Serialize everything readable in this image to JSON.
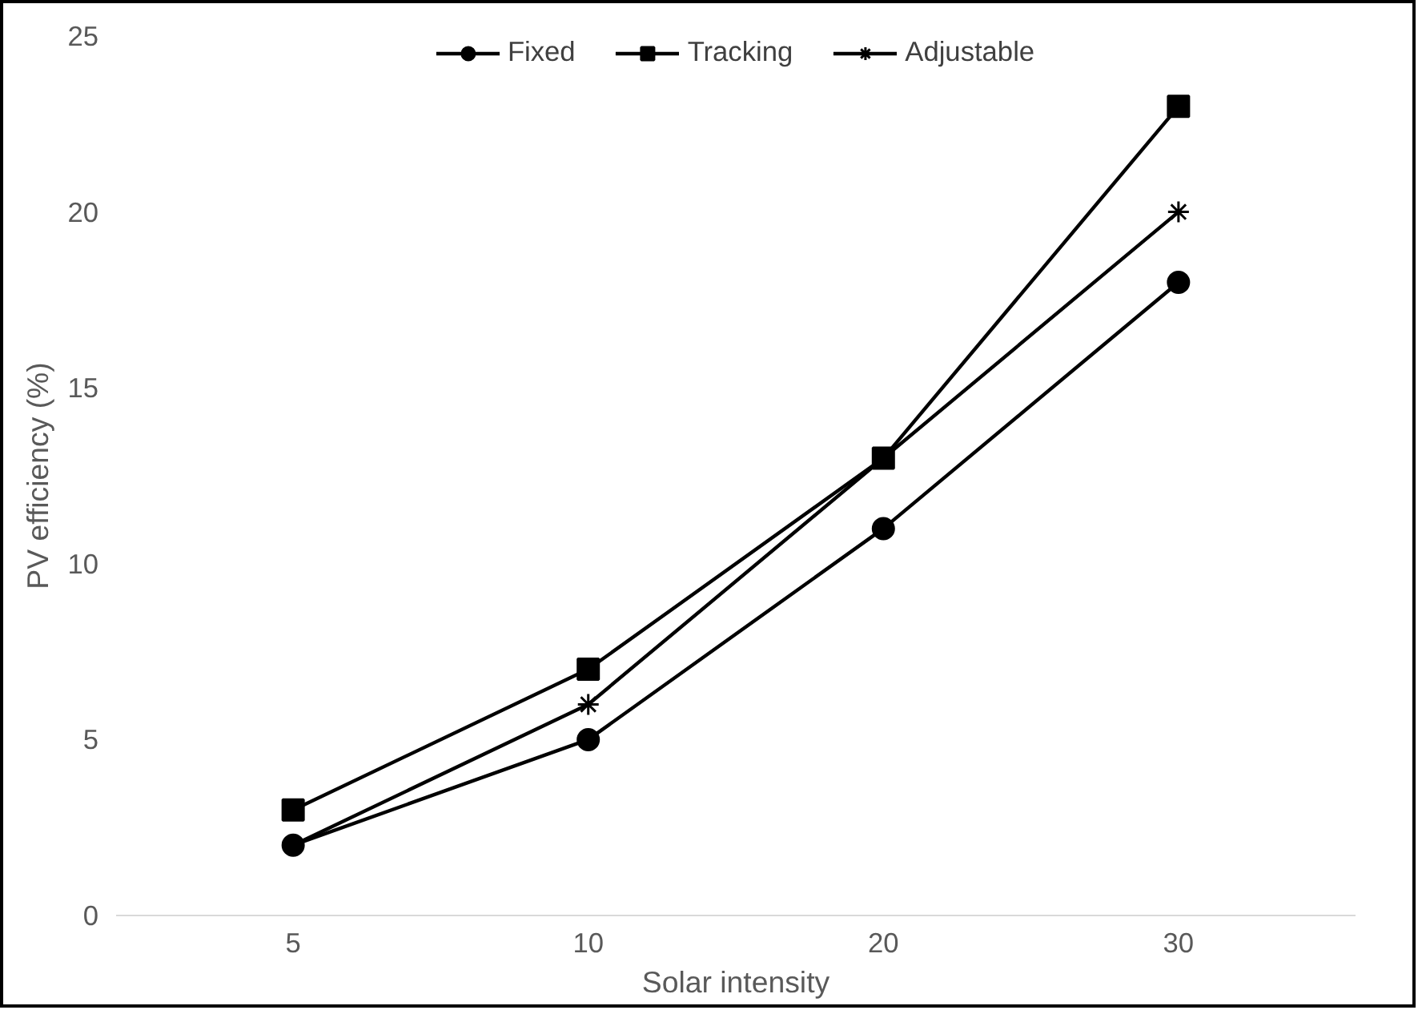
{
  "chart_data": {
    "type": "line",
    "xlabel": "Solar intensity",
    "ylabel": "PV efficiency (%)",
    "categories": [
      "5",
      "10",
      "20",
      "30"
    ],
    "ylim": [
      0,
      25
    ],
    "yticks": [
      0,
      5,
      10,
      15,
      20,
      25
    ],
    "grid": false,
    "legend": "top",
    "line_style": "solid",
    "series": [
      {
        "name": "Fixed",
        "color": "#000000",
        "marker": "circle",
        "values": [
          2,
          5,
          11,
          18
        ]
      },
      {
        "name": "Tracking",
        "color": "#000000",
        "marker": "square",
        "values": [
          3,
          7,
          13,
          23
        ]
      },
      {
        "name": "Adjustable",
        "color": "#000000",
        "marker": "cross",
        "values": [
          2,
          6,
          13,
          20
        ]
      }
    ]
  }
}
